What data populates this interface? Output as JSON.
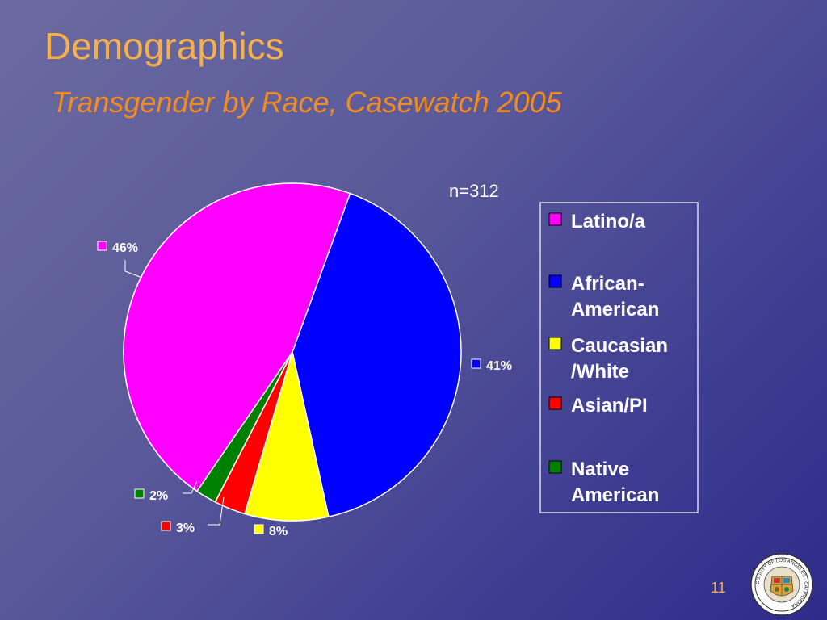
{
  "slide": {
    "title": "Demographics",
    "subtitle": "Transgender by Race, Casewatch 2005",
    "sample_note": "n=312",
    "page_number": "11",
    "seal_text": "COUNTY OF LOS ANGELES · CALIFORNIA"
  },
  "colors": {
    "background": "#5a5a9a",
    "title": "#f6b04a",
    "subtitle": "#f28c1e",
    "text": "#ffffff"
  },
  "chart_data": {
    "type": "pie",
    "start_angle_deg": 20,
    "direction": "clockwise",
    "legend_position": "right",
    "categories": [
      "Latino/a",
      "African-American",
      "Caucasian/White",
      "Asian/PI",
      "Native American"
    ],
    "legend_labels": [
      [
        "Latino/a"
      ],
      [
        "African-",
        "American"
      ],
      [
        "Caucasian",
        "/White"
      ],
      [
        "Asian/PI"
      ],
      [
        "Native",
        "American"
      ]
    ],
    "values": [
      46,
      41,
      8,
      3,
      2
    ],
    "data_labels": [
      "46%",
      "41%",
      "8%",
      "3%",
      "2%"
    ],
    "colors": [
      "#ff00ff",
      "#0000ff",
      "#ffff00",
      "#ff0000",
      "#008000"
    ],
    "slice_order": [
      1,
      2,
      3,
      4,
      0
    ]
  }
}
